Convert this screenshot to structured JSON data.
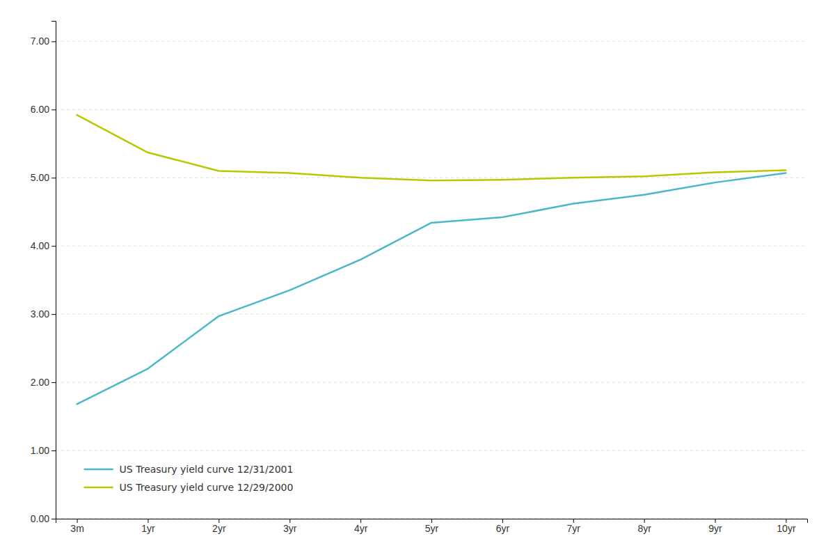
{
  "chart_data": {
    "type": "line",
    "categories": [
      "3m",
      "1yr",
      "2yr",
      "3yr",
      "4yr",
      "5yr",
      "6yr",
      "7yr",
      "8yr",
      "9yr",
      "10yr"
    ],
    "series": [
      {
        "name": "US Treasury yield curve 12/31/2001",
        "color": "#4ab8c8",
        "values": [
          1.68,
          2.2,
          2.97,
          3.35,
          3.8,
          4.34,
          4.42,
          4.62,
          4.75,
          4.93,
          5.07
        ]
      },
      {
        "name": "US Treasury yield curve 12/29/2000",
        "color": "#b8c800",
        "values": [
          5.92,
          5.37,
          5.1,
          5.07,
          5.0,
          4.96,
          4.97,
          5.0,
          5.02,
          5.08,
          5.11
        ]
      }
    ],
    "ylim": [
      0.0,
      7.3
    ],
    "yticks": [
      {
        "value": 0.0,
        "label": "0.00"
      },
      {
        "value": 1.0,
        "label": "1.00"
      },
      {
        "value": 2.0,
        "label": "2.00"
      },
      {
        "value": 3.0,
        "label": "3.00"
      },
      {
        "value": 4.0,
        "label": "4.00"
      },
      {
        "value": 5.0,
        "label": "5.00"
      },
      {
        "value": 6.0,
        "label": "6.00"
      },
      {
        "value": 7.0,
        "label": "7.00"
      }
    ],
    "grid": true,
    "legend": "lower left"
  }
}
